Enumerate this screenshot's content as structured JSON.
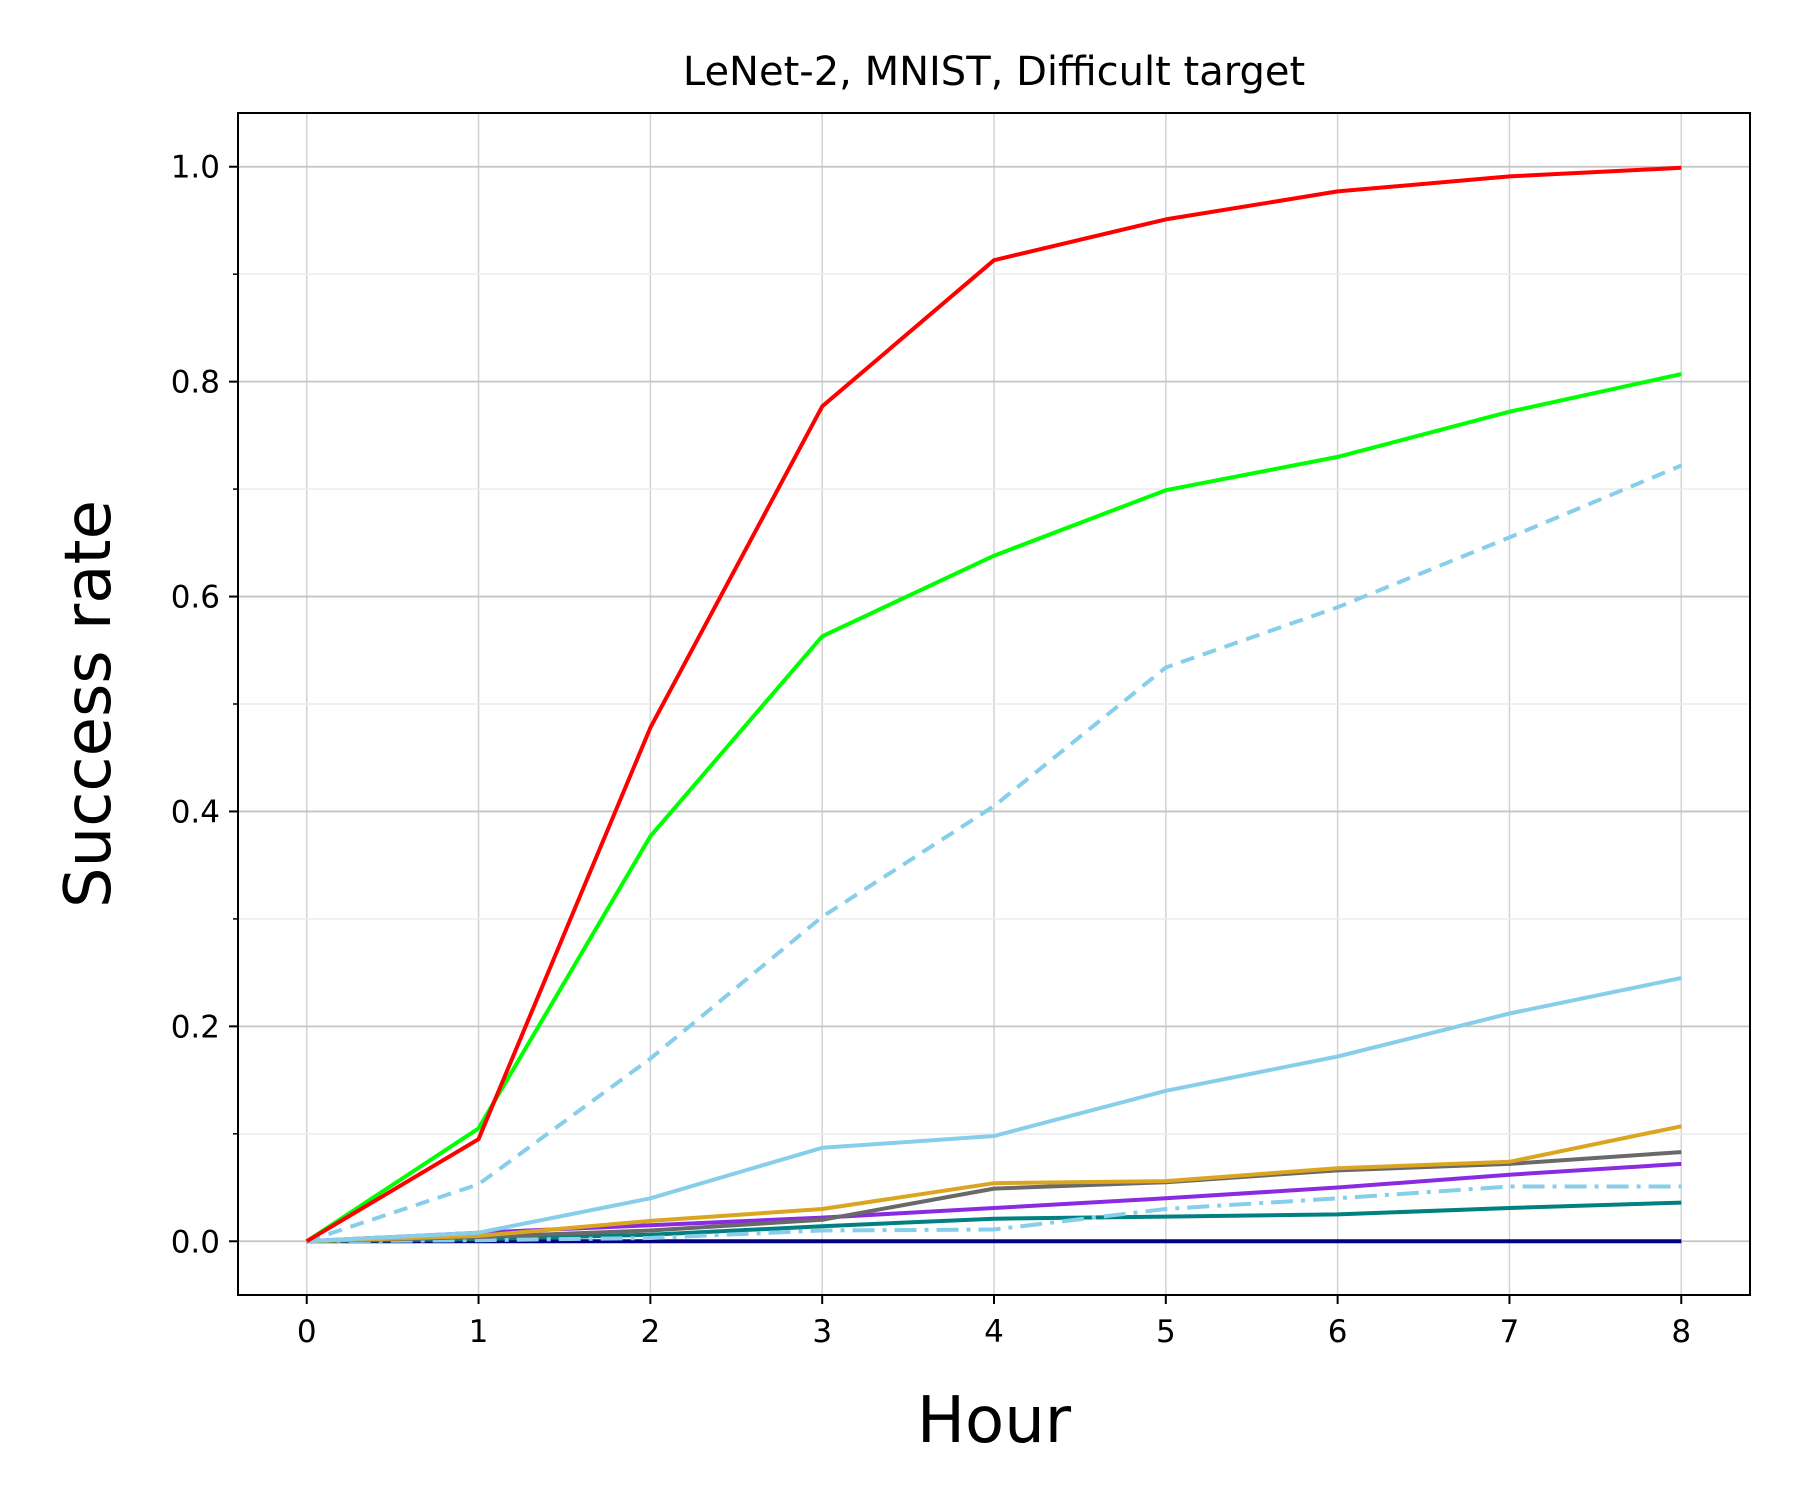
{
  "chart_data": {
    "type": "line",
    "title": "LeNet-2, MNIST, Difficult target",
    "xlabel": "Hour",
    "ylabel": "Success rate",
    "x": [
      0,
      1,
      2,
      3,
      4,
      5,
      6,
      7,
      8
    ],
    "xlim": [
      -0.4,
      8.4
    ],
    "ylim": [
      -0.05,
      1.05
    ],
    "xticks": [
      "0",
      "1",
      "2",
      "3",
      "4",
      "5",
      "6",
      "7",
      "8"
    ],
    "yticks": [
      "0.0",
      "0.2",
      "0.4",
      "0.6",
      "0.8",
      "1.0"
    ],
    "grid": true,
    "series": [
      {
        "color": "#ff0000",
        "style": "solid",
        "values": [
          0.0,
          0.095,
          0.478,
          0.777,
          0.913,
          0.951,
          0.977,
          0.991,
          0.999
        ]
      },
      {
        "color": "#00ff00",
        "style": "solid",
        "values": [
          0.0,
          0.105,
          0.377,
          0.563,
          0.638,
          0.699,
          0.73,
          0.772,
          0.807
        ]
      },
      {
        "color": "#87ceeb",
        "style": "dashed",
        "values": [
          0.0,
          0.053,
          0.17,
          0.302,
          0.405,
          0.534,
          0.59,
          0.655,
          0.722
        ]
      },
      {
        "color": "#87ceeb",
        "style": "solid",
        "values": [
          0.0,
          0.008,
          0.04,
          0.087,
          0.098,
          0.14,
          0.172,
          0.212,
          0.245
        ]
      },
      {
        "color": "#daa520",
        "style": "solid",
        "values": [
          0.0,
          0.005,
          0.019,
          0.03,
          0.054,
          0.056,
          0.068,
          0.074,
          0.107
        ]
      },
      {
        "color": "#696969",
        "style": "solid",
        "values": [
          0.0,
          0.004,
          0.01,
          0.02,
          0.049,
          0.055,
          0.066,
          0.072,
          0.083
        ]
      },
      {
        "color": "#8a2be2",
        "style": "solid",
        "values": [
          0.0,
          0.008,
          0.015,
          0.022,
          0.031,
          0.04,
          0.05,
          0.062,
          0.072
        ]
      },
      {
        "color": "#87ceeb",
        "style": "dashdot",
        "values": [
          0.0,
          0.001,
          0.003,
          0.01,
          0.011,
          0.03,
          0.04,
          0.051,
          0.051
        ]
      },
      {
        "color": "#008080",
        "style": "solid",
        "values": [
          0.0,
          0.002,
          0.006,
          0.014,
          0.021,
          0.023,
          0.025,
          0.031,
          0.036
        ]
      },
      {
        "color": "#000080",
        "style": "solid",
        "values": [
          0.0,
          0.0,
          0.0,
          0.0,
          0.0,
          0.0,
          0.0,
          0.0,
          0.0
        ]
      }
    ]
  }
}
